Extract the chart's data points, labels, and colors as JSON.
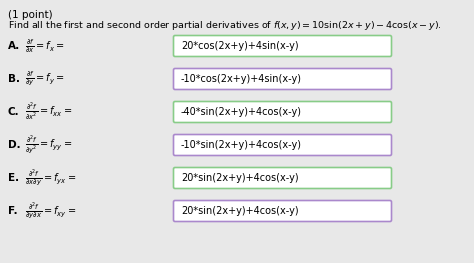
{
  "title_line1": "(1 point)",
  "title_line2": "Find all the first and second order partial derivatives of $f(x, y) = 10\\sin(2x + y) - 4\\cos(x - y)$.",
  "bg_color": "#e8e8e8",
  "box_bg": "#ffffff",
  "box_border_green": "#88cc88",
  "box_border_purple": "#aa88cc",
  "rows": [
    {
      "label": "A.",
      "left_math": "$\\frac{\\partial f}{\\partial x} = f_x =$",
      "answer": "20*cos(2x+y)+4sin(x-y)",
      "border": "green"
    },
    {
      "label": "B.",
      "left_math": "$\\frac{\\partial f}{\\partial y} = f_y =$",
      "answer": "-10*cos(2x+y)+4sin(x-y)",
      "border": "purple"
    },
    {
      "label": "C.",
      "left_math": "$\\frac{\\partial^2 f}{\\partial x^2} = f_{xx} =$",
      "answer": "-40*sin(2x+y)+4cos(x-y)",
      "border": "green"
    },
    {
      "label": "D.",
      "left_math": "$\\frac{\\partial^2 f}{\\partial y^2} = f_{yy} =$",
      "answer": "-10*sin(2x+y)+4cos(x-y)",
      "border": "purple"
    },
    {
      "label": "E.",
      "left_math": "$\\frac{\\partial^2 f}{\\partial x\\partial y} = f_{yx} =$",
      "answer": "20*sin(2x+y)+4cos(x-y)",
      "border": "green"
    },
    {
      "label": "F.",
      "left_math": "$\\frac{\\partial^2 f}{\\partial y\\partial x} = f_{xy} =$",
      "answer": "20*sin(2x+y)+4cos(x-y)",
      "border": "purple"
    }
  ]
}
